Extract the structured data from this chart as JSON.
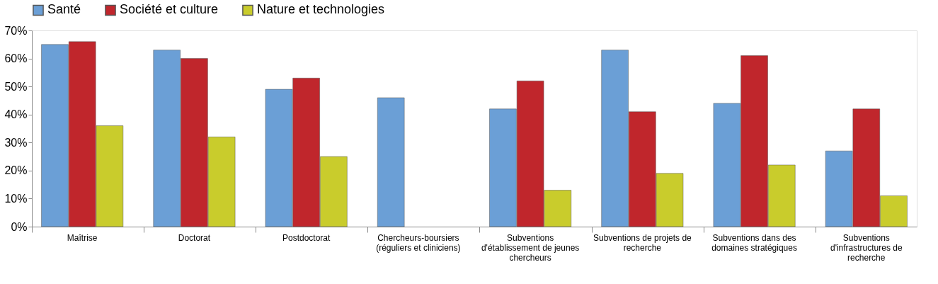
{
  "chart_data": {
    "type": "bar",
    "categories": [
      "Maîtrise",
      "Doctorat",
      "Postdoctorat",
      "Chercheurs-boursiers (réguliers et cliniciens)",
      "Subventions d'établissement de jeunes chercheurs",
      "Subventions de projets de recherche",
      "Subventions dans des domaines stratégiques",
      "Subventions d'infrastructures de recherche"
    ],
    "series": [
      {
        "name": "Santé",
        "color": "#6b9fd6",
        "values": [
          65,
          63,
          49,
          46,
          42,
          63,
          44,
          27
        ]
      },
      {
        "name": "Société et culture",
        "color": "#c0262c",
        "values": [
          66,
          60,
          53,
          null,
          52,
          41,
          61,
          42
        ]
      },
      {
        "name": "Nature et technologies",
        "color": "#c9cc2c",
        "values": [
          36,
          32,
          25,
          null,
          13,
          19,
          22,
          11
        ]
      }
    ],
    "ylim": [
      0,
      70
    ],
    "yticks": [
      {
        "value": 0,
        "label": "0%"
      },
      {
        "value": 10,
        "label": "10%"
      },
      {
        "value": 20,
        "label": "20%"
      },
      {
        "value": 30,
        "label": "30%"
      },
      {
        "value": 40,
        "label": "40%"
      },
      {
        "value": 50,
        "label": "50%"
      },
      {
        "value": 60,
        "label": "60%"
      },
      {
        "value": 70,
        "label": "70%"
      }
    ],
    "grid": false,
    "legend": "top"
  }
}
